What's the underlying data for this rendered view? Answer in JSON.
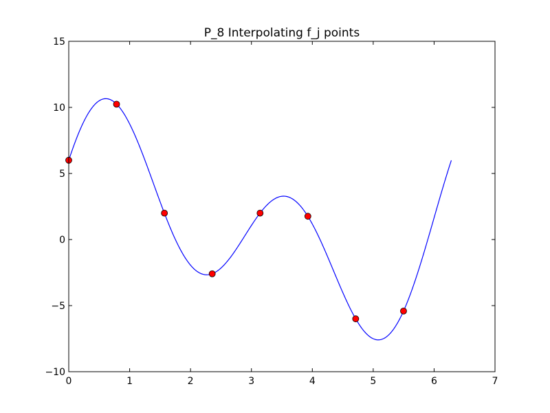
{
  "chart_data": {
    "type": "line",
    "title": "P_8 Interpolating f_j points",
    "xlabel": "",
    "ylabel": "",
    "xlim": [
      0,
      7
    ],
    "ylim": [
      -10,
      15
    ],
    "xticks": [
      0,
      1,
      2,
      3,
      4,
      5,
      6,
      7
    ],
    "yticks": [
      -10,
      -5,
      0,
      5,
      10,
      15
    ],
    "xtick_labels": [
      "0",
      "1",
      "2",
      "3",
      "4",
      "5",
      "6",
      "7"
    ],
    "ytick_labels": [
      "−10",
      "−5",
      "0",
      "5",
      "10",
      "15"
    ],
    "grid": false,
    "legend": "none",
    "series": [
      {
        "kind": "line",
        "color": "#0000ff",
        "x": [
          0.0,
          0.785,
          1.571,
          2.356,
          3.142,
          3.927,
          4.712,
          5.498,
          6.283
        ],
        "y": [
          6.0,
          10.24,
          2.0,
          -2.59,
          2.0,
          1.76,
          -6.0,
          -5.41,
          6.0
        ]
      },
      {
        "kind": "points",
        "color": "#ff0000",
        "x": [
          0.0,
          0.785,
          1.571,
          2.356,
          3.142,
          3.927,
          4.712,
          5.498
        ],
        "y": [
          6.0,
          10.24,
          2.0,
          -2.59,
          2.0,
          1.76,
          -6.0,
          -5.41
        ]
      }
    ]
  }
}
